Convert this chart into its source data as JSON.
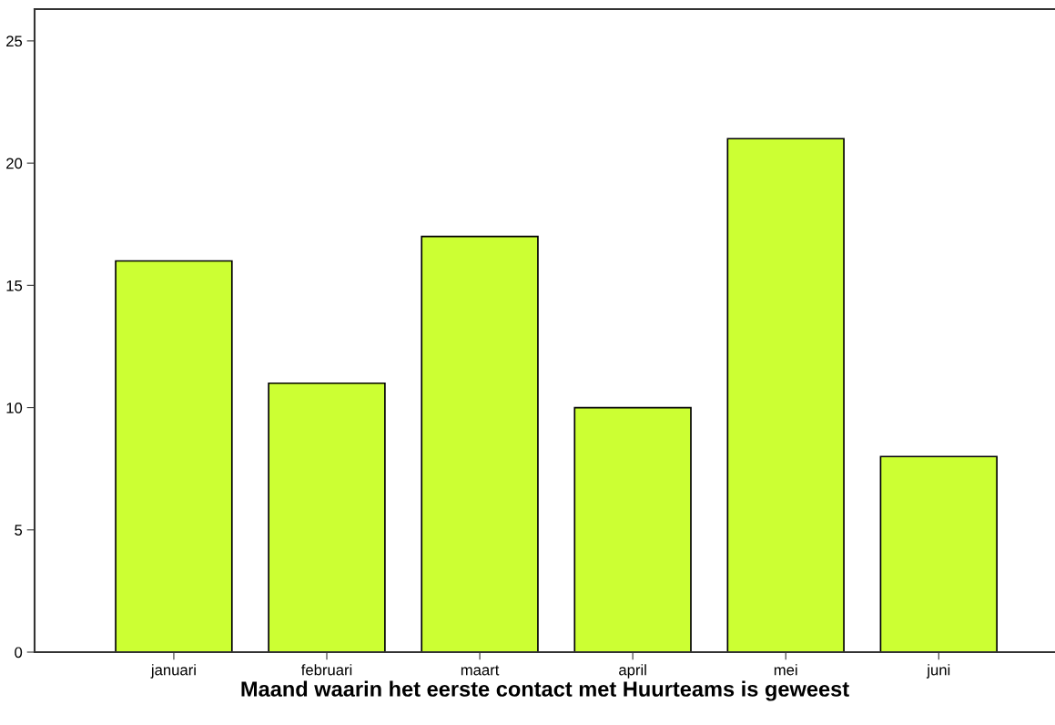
{
  "chart_data": {
    "type": "bar",
    "xlabel": "Maand waarin het eerste contact met Huurteams is geweest",
    "categories": [
      "januari",
      "februari",
      "maart",
      "april",
      "mei",
      "juni"
    ],
    "values": [
      16,
      11,
      17,
      10,
      21,
      8
    ],
    "color": "#ccff33",
    "ylim": [
      0,
      26.3
    ],
    "yticks": [
      0,
      5,
      10,
      15,
      20,
      25
    ],
    "grid": false,
    "legend": false
  }
}
